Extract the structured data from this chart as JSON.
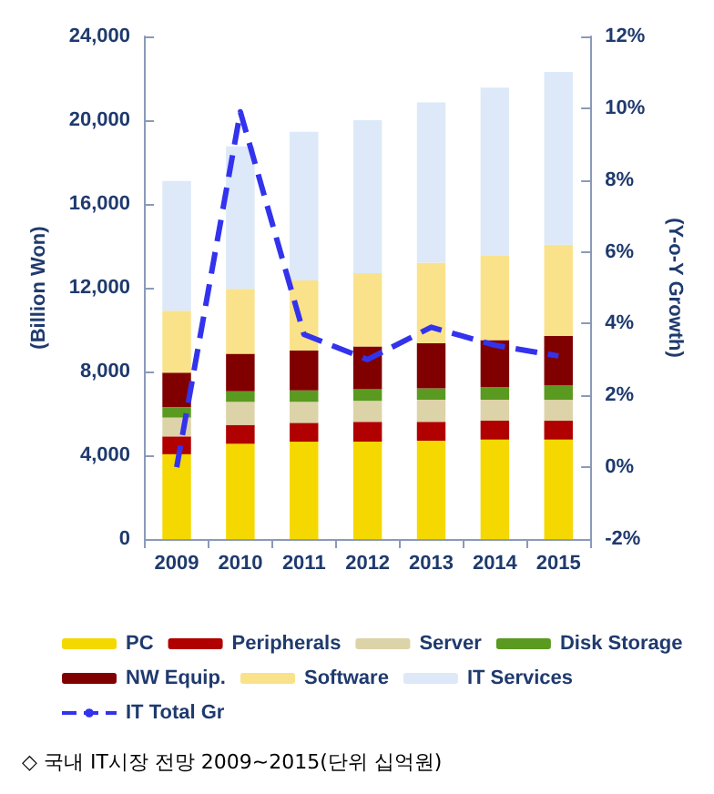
{
  "chart_data": {
    "type": "bar",
    "stacked": true,
    "categories": [
      "2009",
      "2010",
      "2011",
      "2012",
      "2013",
      "2014",
      "2015"
    ],
    "series": [
      {
        "name": "PC",
        "color": "#f5d800",
        "values": [
          4050,
          4550,
          4650,
          4650,
          4700,
          4750,
          4750
        ]
      },
      {
        "name": "Peripherals",
        "color": "#b00000",
        "values": [
          850,
          900,
          900,
          950,
          900,
          900,
          900
        ]
      },
      {
        "name": "Server",
        "color": "#ddd3a8",
        "values": [
          900,
          1100,
          1000,
          1000,
          1050,
          1000,
          1000
        ]
      },
      {
        "name": "Disk Storage",
        "color": "#5a9a20",
        "values": [
          500,
          500,
          550,
          550,
          550,
          600,
          700
        ]
      },
      {
        "name": "NW Equip.",
        "color": "#800000",
        "values": [
          1650,
          1800,
          1900,
          2050,
          2150,
          2250,
          2350
        ]
      },
      {
        "name": "Software",
        "color": "#fae28a",
        "values": [
          2950,
          3100,
          3350,
          3500,
          3850,
          4050,
          4350
        ]
      },
      {
        "name": "IT Services",
        "color": "#dde9f8",
        "values": [
          6200,
          6800,
          7100,
          7300,
          7650,
          8000,
          8250
        ]
      },
      {
        "name": "IT Total Gr",
        "type": "line",
        "axis": "y2",
        "line_style": "dashed",
        "color": "#3333ee",
        "values": [
          0,
          9.9,
          3.7,
          3.0,
          3.9,
          3.4,
          3.1
        ]
      }
    ],
    "ylim": [
      0,
      24000
    ],
    "yticks": [
      {
        "value": 0,
        "label": "0"
      },
      {
        "value": 4000,
        "label": "4,000"
      },
      {
        "value": 8000,
        "label": "8,000"
      },
      {
        "value": 12000,
        "label": "12,000"
      },
      {
        "value": 16000,
        "label": "16,000"
      },
      {
        "value": 20000,
        "label": "20,000"
      },
      {
        "value": 24000,
        "label": "24,000"
      }
    ],
    "y2lim": [
      -2,
      12
    ],
    "y2ticks": [
      {
        "value": -2,
        "label": "-2%"
      },
      {
        "value": 0,
        "label": "0%"
      },
      {
        "value": 2,
        "label": "2%"
      },
      {
        "value": 4,
        "label": "4%"
      },
      {
        "value": 6,
        "label": "6%"
      },
      {
        "value": 8,
        "label": "8%"
      },
      {
        "value": 10,
        "label": "10%"
      },
      {
        "value": 12,
        "label": "12%"
      }
    ],
    "ylabel": "(Billion Won)",
    "y2label": "(Y-o-Y Growth)",
    "marker": "none",
    "legend": "bottom",
    "annotations": [
      "◇ 국내 IT시장 전망 2009~2015(단위 십억원)"
    ]
  }
}
